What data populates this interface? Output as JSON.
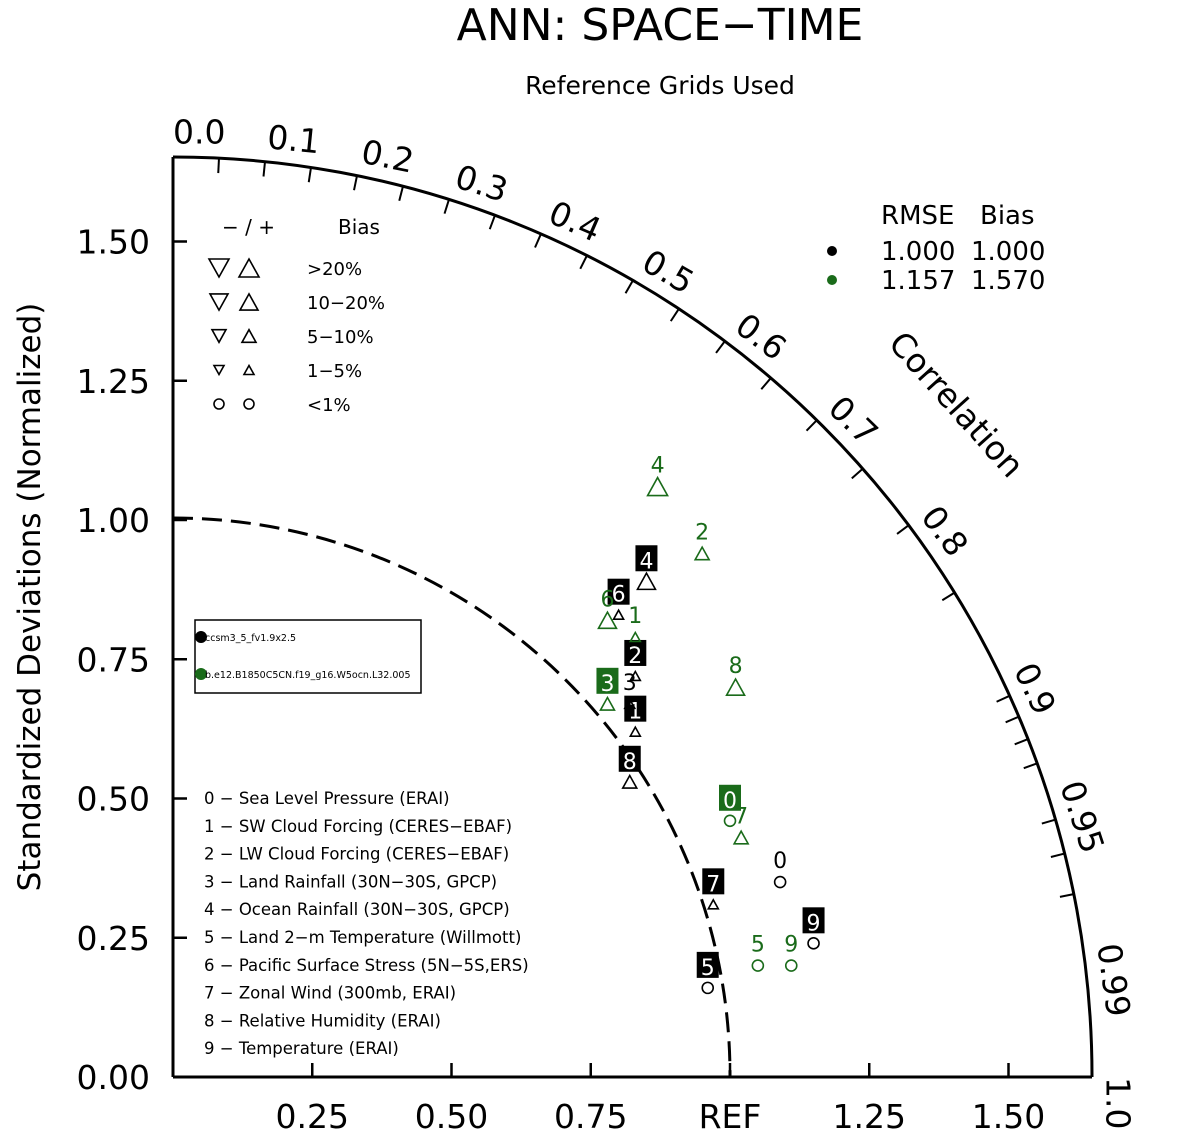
{
  "chart_data": {
    "type": "taylor",
    "title": "ANN: SPACE−TIME",
    "subtitle": "Reference Grids Used",
    "ylabel": "Standardized Deviations (Normalized)",
    "arc_label": "Correlation",
    "x_tick_labels": [
      "0.25",
      "0.50",
      "0.75",
      "REF",
      "1.25",
      "1.50"
    ],
    "x_tick_values": [
      0.25,
      0.5,
      0.75,
      1.0,
      1.25,
      1.5
    ],
    "y_tick_labels": [
      "0.00",
      "0.25",
      "0.50",
      "0.75",
      "1.00",
      "1.25",
      "1.50"
    ],
    "y_tick_values": [
      0,
      0.25,
      0.5,
      0.75,
      1.0,
      1.25,
      1.5
    ],
    "std_max": 1.65,
    "reference_std": 1.0,
    "correlation_labels": [
      {
        "label": "0.0",
        "value": 0.0
      },
      {
        "label": "0.1",
        "value": 0.1
      },
      {
        "label": "0.2",
        "value": 0.2
      },
      {
        "label": "0.3",
        "value": 0.3
      },
      {
        "label": "0.4",
        "value": 0.4
      },
      {
        "label": "0.5",
        "value": 0.5
      },
      {
        "label": "0.6",
        "value": 0.6
      },
      {
        "label": "0.7",
        "value": 0.7
      },
      {
        "label": "0.8",
        "value": 0.8
      },
      {
        "label": "0.9",
        "value": 0.9
      },
      {
        "label": "0.95",
        "value": 0.95
      },
      {
        "label": "0.99",
        "value": 0.99
      },
      {
        "label": "1.0",
        "value": 1.0
      }
    ],
    "bias_legend": {
      "header_symbols": "− / +",
      "header_label": "Bias",
      "rows": [
        {
          "label": ">20%",
          "shape": "triangle",
          "size": "xl"
        },
        {
          "label": "10−20%",
          "shape": "triangle",
          "size": "l"
        },
        {
          "label": "5−10%",
          "shape": "triangle",
          "size": "m"
        },
        {
          "label": "1−5%",
          "shape": "triangle",
          "size": "s"
        },
        {
          "label": "<1%",
          "shape": "circle",
          "size": "s"
        }
      ]
    },
    "summary": {
      "header_rmse": "RMSE",
      "header_bias": "Bias",
      "rows": [
        {
          "rmse": "1.000",
          "bias": "1.000",
          "color": "#000000"
        },
        {
          "rmse": "1.157",
          "bias": "1.570",
          "color": "#1a6b1a"
        }
      ]
    },
    "cases": [
      {
        "name": "ccsm3_5_fv1.9x2.5",
        "color": "#000000"
      },
      {
        "name": "b.e12.B1850C5CN.f19_g16.W5ocn.L32.005",
        "color": "#1a6b1a"
      }
    ],
    "variables": [
      {
        "id": "0",
        "label": "0 − Sea Level Pressure (ERAI)"
      },
      {
        "id": "1",
        "label": "1 − SW Cloud Forcing (CERES−EBAF)"
      },
      {
        "id": "2",
        "label": "2 − LW Cloud Forcing (CERES−EBAF)"
      },
      {
        "id": "3",
        "label": "3 − Land Rainfall (30N−30S, GPCP)"
      },
      {
        "id": "4",
        "label": "4 − Ocean Rainfall (30N−30S, GPCP)"
      },
      {
        "id": "5",
        "label": "5 − Land 2−m Temperature (Willmott)"
      },
      {
        "id": "6",
        "label": "6 − Pacific Surface Stress (5N−5S,ERS)"
      },
      {
        "id": "7",
        "label": "7 − Zonal Wind (300mb, ERAI)"
      },
      {
        "id": "8",
        "label": "8 − Relative Humidity (ERAI)"
      },
      {
        "id": "9",
        "label": "9 − Temperature (ERAI)"
      }
    ],
    "points": [
      {
        "case": 0,
        "id": "0",
        "x": 1.09,
        "y": 0.35,
        "shape": "circle",
        "size": "s",
        "boxed": false
      },
      {
        "case": 0,
        "id": "1",
        "x": 0.83,
        "y": 0.62,
        "shape": "triangle",
        "size": "s",
        "boxed": true
      },
      {
        "case": 0,
        "id": "2",
        "x": 0.83,
        "y": 0.72,
        "shape": "triangle",
        "size": "s",
        "boxed": true
      },
      {
        "case": 0,
        "id": "3",
        "x": 0.82,
        "y": 0.67,
        "shape": "triangle",
        "size": "s",
        "boxed": false
      },
      {
        "case": 0,
        "id": "4",
        "x": 0.85,
        "y": 0.89,
        "shape": "triangle",
        "size": "l",
        "boxed": true
      },
      {
        "case": 0,
        "id": "5",
        "x": 0.96,
        "y": 0.16,
        "shape": "circle",
        "size": "s",
        "boxed": true
      },
      {
        "case": 0,
        "id": "6",
        "x": 0.8,
        "y": 0.83,
        "shape": "triangle",
        "size": "s",
        "boxed": true
      },
      {
        "case": 0,
        "id": "7",
        "x": 0.97,
        "y": 0.31,
        "shape": "triangle",
        "size": "s",
        "boxed": true
      },
      {
        "case": 0,
        "id": "8",
        "x": 0.82,
        "y": 0.53,
        "shape": "triangle",
        "size": "m",
        "boxed": true
      },
      {
        "case": 0,
        "id": "9",
        "x": 1.15,
        "y": 0.24,
        "shape": "circle",
        "size": "s",
        "boxed": true
      },
      {
        "case": 1,
        "id": "0",
        "x": 1.0,
        "y": 0.46,
        "shape": "circle",
        "size": "s",
        "boxed": true
      },
      {
        "case": 1,
        "id": "1",
        "x": 0.83,
        "y": 0.79,
        "shape": "triangle",
        "size": "s",
        "boxed": false
      },
      {
        "case": 1,
        "id": "2",
        "x": 0.95,
        "y": 0.94,
        "shape": "triangle",
        "size": "m",
        "boxed": false
      },
      {
        "case": 1,
        "id": "3",
        "x": 0.78,
        "y": 0.67,
        "shape": "triangle",
        "size": "m",
        "boxed": true
      },
      {
        "case": 1,
        "id": "4",
        "x": 0.87,
        "y": 1.06,
        "shape": "triangle",
        "size": "xl",
        "boxed": false
      },
      {
        "case": 1,
        "id": "5",
        "x": 1.05,
        "y": 0.2,
        "shape": "circle",
        "size": "s",
        "boxed": false
      },
      {
        "case": 1,
        "id": "6",
        "x": 0.78,
        "y": 0.82,
        "shape": "triangle",
        "size": "l",
        "boxed": false
      },
      {
        "case": 1,
        "id": "7",
        "x": 1.02,
        "y": 0.43,
        "shape": "triangle",
        "size": "m",
        "boxed": false
      },
      {
        "case": 1,
        "id": "8",
        "x": 1.01,
        "y": 0.7,
        "shape": "triangle",
        "size": "l",
        "boxed": false
      },
      {
        "case": 1,
        "id": "9",
        "x": 1.11,
        "y": 0.2,
        "shape": "circle",
        "size": "s",
        "boxed": false
      }
    ]
  }
}
